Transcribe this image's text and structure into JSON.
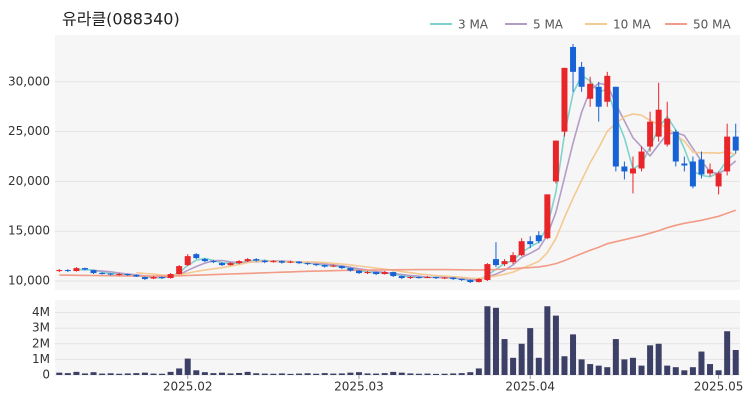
{
  "chart_data": {
    "type": "candlestick",
    "title": "유라클(088340)",
    "categories": [
      null,
      null,
      null,
      null,
      null,
      null,
      null,
      null,
      null,
      null,
      null,
      null,
      null,
      null,
      null,
      "2025.02",
      null,
      null,
      null,
      null,
      null,
      null,
      null,
      null,
      null,
      null,
      null,
      null,
      null,
      null,
      null,
      null,
      null,
      null,
      null,
      "2025.03",
      null,
      null,
      null,
      null,
      null,
      null,
      null,
      null,
      null,
      null,
      null,
      null,
      null,
      null,
      null,
      null,
      null,
      null,
      null,
      "2025.04",
      null,
      null,
      null,
      null,
      null,
      null,
      null,
      null,
      null,
      null,
      null,
      null,
      null,
      null,
      null,
      null,
      null,
      null,
      null,
      null,
      null,
      "2025.05",
      null,
      null
    ],
    "open": [
      11000,
      11100,
      11000,
      11300,
      11100,
      10800,
      10750,
      10600,
      10700,
      10600,
      10400,
      10250,
      10400,
      10300,
      10700,
      11600,
      12700,
      12200,
      12000,
      11800,
      11600,
      11800,
      12000,
      12200,
      12050,
      11900,
      12000,
      11850,
      11950,
      11800,
      11700,
      11600,
      11450,
      11500,
      11300,
      11050,
      10800,
      10900,
      10700,
      10900,
      10500,
      10300,
      10400,
      10350,
      10400,
      10300,
      10350,
      10200,
      10100,
      9900,
      10100,
      12200,
      11700,
      11900,
      12600,
      14000,
      14600,
      14300,
      20000,
      25000,
      33500,
      31500,
      28300,
      29500,
      28000,
      29500,
      21500,
      20800,
      21300,
      23500,
      24500,
      23700,
      25000,
      21800,
      22000,
      22200,
      20800,
      19500,
      21000,
      24500
    ],
    "high": [
      11200,
      11200,
      11400,
      11350,
      11150,
      10900,
      10800,
      10800,
      10750,
      10650,
      10450,
      10500,
      10450,
      10800,
      11600,
      12700,
      12800,
      12300,
      12100,
      11900,
      11900,
      12100,
      12300,
      12300,
      12150,
      12100,
      12050,
      12050,
      12000,
      11850,
      11750,
      11650,
      11650,
      11550,
      11350,
      11100,
      11000,
      10950,
      11000,
      10950,
      10550,
      10500,
      10450,
      10500,
      10450,
      10400,
      10400,
      10250,
      10150,
      10300,
      11800,
      13900,
      12200,
      12900,
      14300,
      14500,
      15000,
      18700,
      24100,
      31400,
      33800,
      32000,
      30500,
      30000,
      31000,
      29500,
      22000,
      22500,
      23500,
      27000,
      29900,
      28000,
      25200,
      22500,
      22500,
      23000,
      21800,
      21000,
      25800,
      25800
    ],
    "low": [
      10900,
      10900,
      10950,
      11050,
      10700,
      10650,
      10550,
      10550,
      10500,
      10400,
      10100,
      10200,
      10200,
      10250,
      10650,
      11500,
      12200,
      11900,
      11800,
      11500,
      11550,
      11700,
      11900,
      11950,
      11800,
      11850,
      11750,
      11800,
      11700,
      11600,
      11500,
      11350,
      11400,
      11200,
      10950,
      10700,
      10700,
      10600,
      10650,
      10400,
      10200,
      10200,
      10250,
      10300,
      10200,
      10200,
      10100,
      10000,
      9800,
      9850,
      10000,
      11400,
      11500,
      11700,
      12500,
      13300,
      13800,
      14200,
      19800,
      24500,
      29000,
      29000,
      27500,
      26000,
      27500,
      21000,
      20200,
      18800,
      21000,
      23000,
      24000,
      23500,
      21500,
      21000,
      19300,
      20300,
      20500,
      18700,
      20600,
      22800
    ],
    "close": [
      11100,
      11000,
      11300,
      11150,
      10800,
      10750,
      10650,
      10700,
      10600,
      10450,
      10200,
      10400,
      10300,
      10700,
      11500,
      12500,
      12300,
      12000,
      11900,
      11600,
      11800,
      12000,
      12200,
      12050,
      11900,
      12000,
      11850,
      11950,
      11800,
      11700,
      11600,
      11450,
      11550,
      11300,
      11050,
      10800,
      10900,
      10700,
      10900,
      10500,
      10300,
      10400,
      10350,
      10400,
      10300,
      10350,
      10200,
      10100,
      9900,
      10200,
      11700,
      11600,
      12000,
      12600,
      14000,
      13700,
      14000,
      18700,
      24100,
      31400,
      31000,
      29500,
      29800,
      27500,
      30600,
      21500,
      21000,
      21300,
      23000,
      26000,
      27200,
      26300,
      22000,
      21600,
      19500,
      20700,
      21200,
      20800,
      24500,
      23100
    ],
    "up_color": "#e8262a",
    "down_color": "#1763d6",
    "ylim": [
      9100,
      34700
    ],
    "yticks": [
      {
        "value": 10000,
        "label": "10,000"
      },
      {
        "value": 15000,
        "label": "15,000"
      },
      {
        "value": 20000,
        "label": "20,000"
      },
      {
        "value": 25000,
        "label": "25,000"
      },
      {
        "value": 30000,
        "label": "30,000"
      }
    ],
    "grid": true,
    "legend": "top-right",
    "series": [
      {
        "name": "3 MA",
        "color": "#7fd3cf",
        "values": [
          null,
          null,
          11133,
          11150,
          11083,
          10900,
          10733,
          10700,
          10650,
          10583,
          10417,
          10350,
          10300,
          10467,
          10833,
          11567,
          12100,
          12267,
          12067,
          11833,
          11767,
          11800,
          12000,
          12083,
          12050,
          11983,
          11917,
          11933,
          11867,
          11817,
          11700,
          11583,
          11533,
          11433,
          11300,
          11050,
          10917,
          10800,
          10833,
          10700,
          10567,
          10400,
          10350,
          10383,
          10350,
          10350,
          10283,
          10217,
          10067,
          10067,
          10600,
          11167,
          11767,
          12067,
          12867,
          13433,
          13900,
          15467,
          18933,
          24733,
          28833,
          30633,
          30100,
          28933,
          29300,
          26533,
          24367,
          21267,
          21767,
          23433,
          25400,
          26500,
          25167,
          23300,
          21033,
          20600,
          20467,
          20900,
          22167,
          22800
        ]
      },
      {
        "name": "5 MA",
        "color": "#b49cc8",
        "values": [
          null,
          null,
          null,
          null,
          11070,
          11000,
          10930,
          10810,
          10700,
          10630,
          10520,
          10470,
          10390,
          10410,
          10620,
          11080,
          11460,
          11800,
          12040,
          12060,
          11920,
          11860,
          11900,
          11930,
          11990,
          12030,
          12000,
          11950,
          11900,
          11860,
          11780,
          11700,
          11620,
          11520,
          11390,
          11230,
          11120,
          10950,
          10870,
          10760,
          10660,
          10560,
          10490,
          10390,
          10350,
          10360,
          10320,
          10270,
          10170,
          10150,
          10420,
          10700,
          11080,
          11620,
          12380,
          12780,
          13260,
          14600,
          16900,
          20380,
          23840,
          26940,
          29160,
          29840,
          29680,
          27780,
          26080,
          24380,
          23480,
          22560,
          23700,
          24760,
          24900,
          24620,
          23320,
          22020,
          21000,
          20760,
          21340,
          22060
        ]
      },
      {
        "name": "10 MA",
        "color": "#f5c992",
        "values": [
          null,
          null,
          null,
          null,
          null,
          null,
          null,
          null,
          null,
          10850,
          10760,
          10700,
          10600,
          10555,
          10625,
          10800,
          10965,
          11095,
          11225,
          11340,
          11500,
          11660,
          11850,
          11985,
          12025,
          11975,
          11930,
          11925,
          11915,
          11925,
          11905,
          11850,
          11785,
          11710,
          11625,
          11505,
          11410,
          11285,
          11195,
          11075,
          10945,
          10840,
          10720,
          10630,
          10555,
          10510,
          10440,
          10380,
          10280,
          10250,
          10390,
          10510,
          10675,
          10895,
          11265,
          11600,
          11980,
          12840,
          14260,
          16380,
          18310,
          20100,
          21880,
          23370,
          25030,
          25810,
          26510,
          26770,
          26660,
          26120,
          25740,
          25420,
          24640,
          24050,
          22940,
          22860,
          22880,
          22830,
          22980,
          22690
        ]
      },
      {
        "name": "50 MA",
        "color": "#f29c87",
        "values": [
          10600,
          10590,
          10580,
          10570,
          10560,
          10550,
          10540,
          10530,
          10520,
          10510,
          10500,
          10500,
          10500,
          10510,
          10530,
          10560,
          10590,
          10620,
          10650,
          10680,
          10710,
          10740,
          10770,
          10800,
          10830,
          10860,
          10890,
          10920,
          10950,
          10980,
          11000,
          11020,
          11040,
          11060,
          11080,
          11090,
          11100,
          11110,
          11120,
          11130,
          11140,
          11140,
          11150,
          11150,
          11150,
          11150,
          11140,
          11130,
          11120,
          11110,
          11130,
          11160,
          11200,
          11240,
          11300,
          11350,
          11420,
          11550,
          11750,
          12050,
          12400,
          12750,
          13100,
          13400,
          13750,
          13950,
          14150,
          14350,
          14550,
          14800,
          15050,
          15350,
          15600,
          15800,
          15950,
          16100,
          16300,
          16500,
          16800,
          17100
        ]
      }
    ],
    "volume": {
      "color": "#3c3f66",
      "values": [
        150000,
        120000,
        200000,
        100000,
        180000,
        90000,
        110000,
        80000,
        100000,
        120000,
        150000,
        90000,
        80000,
        200000,
        420000,
        1050000,
        300000,
        180000,
        120000,
        150000,
        100000,
        130000,
        200000,
        110000,
        90000,
        80000,
        100000,
        70000,
        90000,
        110000,
        80000,
        120000,
        90000,
        100000,
        150000,
        180000,
        100000,
        90000,
        120000,
        200000,
        150000,
        100000,
        80000,
        90000,
        70000,
        80000,
        100000,
        120000,
        180000,
        420000,
        4400000,
        4300000,
        2300000,
        1100000,
        2000000,
        3000000,
        1100000,
        4400000,
        3800000,
        1200000,
        2600000,
        1000000,
        700000,
        600000,
        500000,
        2300000,
        1000000,
        1100000,
        600000,
        1900000,
        2000000,
        600000,
        500000,
        300000,
        500000,
        1500000,
        700000,
        300000,
        2800000,
        1600000
      ],
      "ylim": [
        0,
        4800000
      ],
      "yticks": [
        0,
        {
          "value": 1000000,
          "label": "1M"
        },
        {
          "value": 2000000,
          "label": "2M"
        },
        {
          "value": 3000000,
          "label": "3M"
        },
        {
          "value": 4000000,
          "label": "4M"
        }
      ]
    }
  }
}
